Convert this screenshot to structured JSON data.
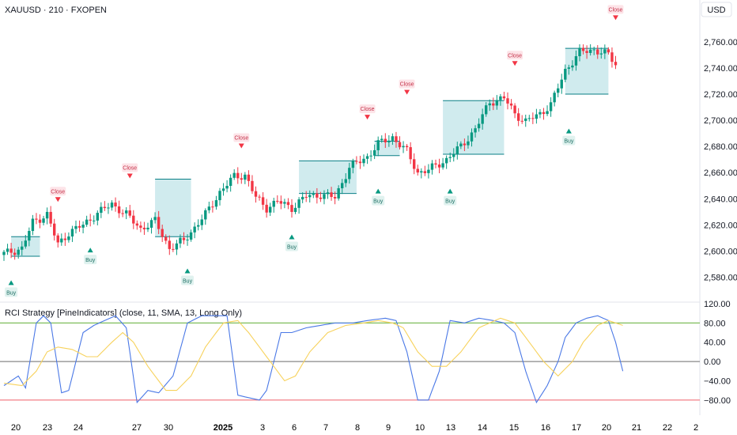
{
  "header": {
    "symbol_line": "XAUUSD · 210 · FXOPEN",
    "currency_button": "USD"
  },
  "indicator": {
    "title": "RCI Strategy [PineIndicators] (close, 11, SMA, 13, Long Only)"
  },
  "colors": {
    "bull": "#089981",
    "bear": "#f23645",
    "zone_fill": "#cbe9ec",
    "zone_border": "#0a7f86",
    "rci_line": "#4a78e6",
    "signal_line": "#f7d25c",
    "upper_level": "#7fbe5a",
    "lower_level": "#f0717a",
    "zero_level": "#888888",
    "buy_label": "#e0f2ef",
    "close_label": "#fde4e8"
  },
  "chart_data": [
    {
      "type": "candlestick",
      "title": "",
      "y_axis": {
        "ticks": [
          2580,
          2600,
          2620,
          2640,
          2660,
          2680,
          2700,
          2720,
          2740,
          2760
        ],
        "tick_labels": [
          "2,580.00",
          "2,600.00",
          "2,620.00",
          "2,640.00",
          "2,660.00",
          "2,680.00",
          "2,700.00",
          "2,720.00",
          "2,740.00",
          "2,760.00"
        ],
        "range": [
          2567,
          2772
        ]
      },
      "x_axis": {
        "tick_labels": [
          "20",
          "23",
          "24",
          "27",
          "30",
          "2025",
          "3",
          "6",
          "7",
          "8",
          "9",
          "10",
          "13",
          "14",
          "15",
          "16",
          "17",
          "20",
          "21",
          "22",
          "2"
        ]
      },
      "anchors": [
        [
          0,
          2598
        ],
        [
          5,
          2602
        ],
        [
          8,
          2622
        ],
        [
          12,
          2628
        ],
        [
          15,
          2605
        ],
        [
          18,
          2614
        ],
        [
          22,
          2620
        ],
        [
          26,
          2629
        ],
        [
          30,
          2636
        ],
        [
          34,
          2628
        ],
        [
          38,
          2617
        ],
        [
          42,
          2623
        ],
        [
          46,
          2602
        ],
        [
          50,
          2608
        ],
        [
          56,
          2628
        ],
        [
          60,
          2645
        ],
        [
          64,
          2657
        ],
        [
          67,
          2658
        ],
        [
          70,
          2641
        ],
        [
          73,
          2633
        ],
        [
          76,
          2638
        ],
        [
          80,
          2633
        ],
        [
          84,
          2642
        ],
        [
          88,
          2643
        ],
        [
          92,
          2641
        ],
        [
          96,
          2664
        ],
        [
          101,
          2672
        ],
        [
          104,
          2682
        ],
        [
          108,
          2687
        ],
        [
          112,
          2676
        ],
        [
          115,
          2660
        ],
        [
          118,
          2662
        ],
        [
          123,
          2670
        ],
        [
          127,
          2680
        ],
        [
          131,
          2693
        ],
        [
          135,
          2714
        ],
        [
          139,
          2717
        ],
        [
          142,
          2705
        ],
        [
          145,
          2699
        ],
        [
          149,
          2705
        ],
        [
          152,
          2712
        ],
        [
          156,
          2738
        ],
        [
          160,
          2752
        ],
        [
          164,
          2754
        ],
        [
          168,
          2750
        ],
        [
          170,
          2743
        ]
      ],
      "zones": [
        {
          "from": 2,
          "to": 10,
          "low": 2596,
          "high": 2611
        },
        {
          "from": 42,
          "to": 52,
          "low": 2611,
          "high": 2655
        },
        {
          "from": 82,
          "to": 98,
          "low": 2644,
          "high": 2669
        },
        {
          "from": 103,
          "to": 110,
          "low": 2673,
          "high": 2684
        },
        {
          "from": 122,
          "to": 139,
          "low": 2674,
          "high": 2715
        },
        {
          "from": 156,
          "to": 168,
          "low": 2720,
          "high": 2755
        }
      ],
      "signals": [
        {
          "type": "buy",
          "text": "Buy",
          "x": 2,
          "price": 2574
        },
        {
          "type": "close",
          "text": "Close",
          "x": 15,
          "price": 2640
        },
        {
          "type": "buy",
          "text": "Buy",
          "x": 24,
          "price": 2599
        },
        {
          "type": "close",
          "text": "Close",
          "x": 35,
          "price": 2658
        },
        {
          "type": "buy",
          "text": "Buy",
          "x": 51,
          "price": 2583
        },
        {
          "type": "close",
          "text": "Close",
          "x": 66,
          "price": 2681
        },
        {
          "type": "buy",
          "text": "Buy",
          "x": 80,
          "price": 2609
        },
        {
          "type": "close",
          "text": "Close",
          "x": 101,
          "price": 2703
        },
        {
          "type": "buy",
          "text": "Buy",
          "x": 104,
          "price": 2644
        },
        {
          "type": "close",
          "text": "Close",
          "x": 112,
          "price": 2722
        },
        {
          "type": "buy",
          "text": "Buy",
          "x": 124,
          "price": 2644
        },
        {
          "type": "close",
          "text": "Close",
          "x": 142,
          "price": 2744
        },
        {
          "type": "buy",
          "text": "Buy",
          "x": 157,
          "price": 2690
        },
        {
          "type": "close",
          "text": "Close",
          "x": 170,
          "price": 2779
        }
      ]
    },
    {
      "type": "line",
      "title": "RCI Strategy [PineIndicators] (close, 11, SMA, 13, Long Only)",
      "y_axis": {
        "ticks": [
          120,
          80,
          40,
          0,
          -40,
          -80
        ],
        "tick_labels": [
          "120.00",
          "80.00",
          "40.00",
          "0.00",
          "−40.00",
          "−80.00"
        ],
        "range": [
          -100,
          120
        ]
      },
      "levels": [
        80,
        0,
        -80
      ],
      "series": [
        {
          "role": "rci",
          "anchors": [
            [
              0,
              -50
            ],
            [
              4,
              -30
            ],
            [
              6,
              -55
            ],
            [
              9,
              80
            ],
            [
              11,
              95
            ],
            [
              13,
              80
            ],
            [
              16,
              -65
            ],
            [
              18,
              -60
            ],
            [
              22,
              60
            ],
            [
              25,
              75
            ],
            [
              28,
              85
            ],
            [
              31,
              95
            ],
            [
              34,
              70
            ],
            [
              37,
              -85
            ],
            [
              40,
              -60
            ],
            [
              43,
              -65
            ],
            [
              47,
              -30
            ],
            [
              51,
              80
            ],
            [
              55,
              95
            ],
            [
              59,
              95
            ],
            [
              62,
              95
            ],
            [
              65,
              -70
            ],
            [
              68,
              -75
            ],
            [
              71,
              -80
            ],
            [
              73,
              -60
            ],
            [
              77,
              60
            ],
            [
              80,
              60
            ],
            [
              84,
              70
            ],
            [
              88,
              75
            ],
            [
              92,
              80
            ],
            [
              97,
              80
            ],
            [
              101,
              85
            ],
            [
              106,
              90
            ],
            [
              109,
              85
            ],
            [
              112,
              20
            ],
            [
              115,
              -80
            ],
            [
              118,
              -80
            ],
            [
              121,
              -20
            ],
            [
              124,
              85
            ],
            [
              128,
              80
            ],
            [
              132,
              90
            ],
            [
              136,
              85
            ],
            [
              139,
              80
            ],
            [
              142,
              60
            ],
            [
              145,
              -20
            ],
            [
              148,
              -85
            ],
            [
              151,
              -50
            ],
            [
              154,
              0
            ],
            [
              156,
              50
            ],
            [
              159,
              80
            ],
            [
              162,
              90
            ],
            [
              165,
              95
            ],
            [
              168,
              85
            ],
            [
              170,
              40
            ],
            [
              172,
              -20
            ]
          ]
        },
        {
          "role": "signal",
          "anchors": [
            [
              0,
              -45
            ],
            [
              5,
              -50
            ],
            [
              9,
              -20
            ],
            [
              12,
              20
            ],
            [
              15,
              30
            ],
            [
              19,
              25
            ],
            [
              23,
              10
            ],
            [
              26,
              10
            ],
            [
              30,
              40
            ],
            [
              33,
              60
            ],
            [
              36,
              40
            ],
            [
              40,
              -10
            ],
            [
              45,
              -60
            ],
            [
              48,
              -60
            ],
            [
              52,
              -30
            ],
            [
              56,
              30
            ],
            [
              61,
              80
            ],
            [
              65,
              85
            ],
            [
              68,
              60
            ],
            [
              71,
              30
            ],
            [
              74,
              0
            ],
            [
              78,
              -40
            ],
            [
              81,
              -30
            ],
            [
              85,
              20
            ],
            [
              90,
              60
            ],
            [
              95,
              75
            ],
            [
              100,
              80
            ],
            [
              104,
              85
            ],
            [
              108,
              80
            ],
            [
              111,
              70
            ],
            [
              115,
              20
            ],
            [
              119,
              -10
            ],
            [
              123,
              -10
            ],
            [
              127,
              20
            ],
            [
              132,
              70
            ],
            [
              138,
              90
            ],
            [
              142,
              80
            ],
            [
              146,
              40
            ],
            [
              150,
              0
            ],
            [
              154,
              -30
            ],
            [
              158,
              0
            ],
            [
              161,
              40
            ],
            [
              165,
              75
            ],
            [
              168,
              85
            ],
            [
              170,
              80
            ],
            [
              172,
              75
            ]
          ]
        }
      ]
    }
  ]
}
